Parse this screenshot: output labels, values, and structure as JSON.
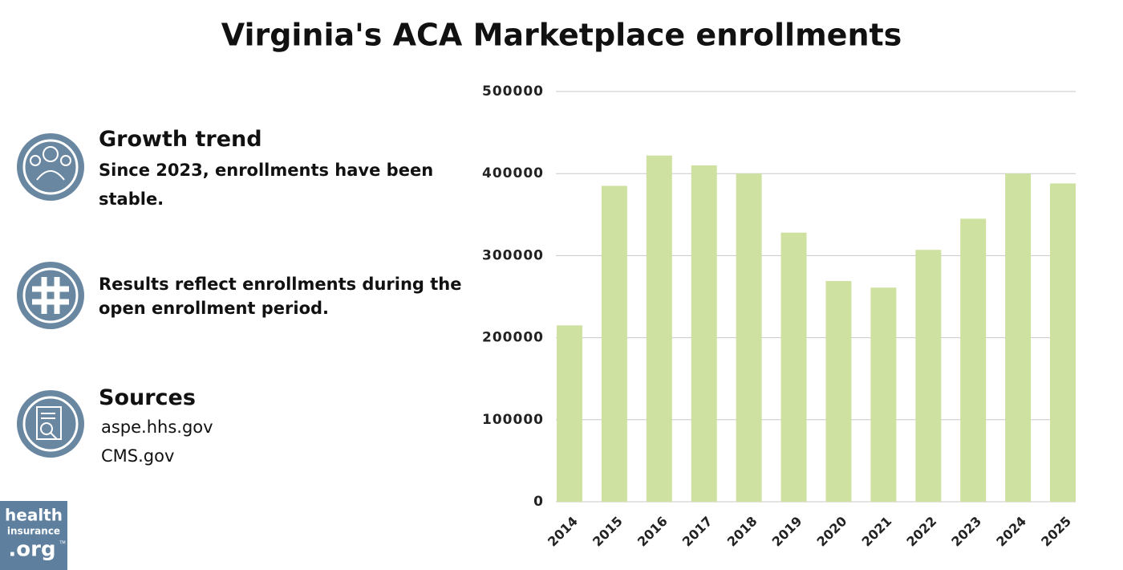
{
  "chart_data": {
    "type": "bar",
    "title": "Virginia's ACA Marketplace enrollments",
    "categories": [
      "2014",
      "2015",
      "2016",
      "2017",
      "2018",
      "2019",
      "2020",
      "2021",
      "2022",
      "2023",
      "2024",
      "2025"
    ],
    "values": [
      215000,
      385000,
      422000,
      410000,
      400000,
      328000,
      269000,
      261000,
      307000,
      345000,
      400000,
      388000
    ],
    "color": "#cfe1a0",
    "ylim": [
      0,
      500000
    ],
    "yticks": [
      0,
      100000,
      200000,
      300000,
      400000,
      500000
    ],
    "grid": true
  },
  "panel": {
    "growth": {
      "heading": "Growth trend",
      "text": "Since 2023, enrollments have been stable."
    },
    "note": {
      "text": "Results reflect enrollments during the open enrollment period."
    },
    "sources": {
      "heading": "Sources",
      "items": [
        "aspe.hhs.gov",
        "CMS.gov"
      ]
    }
  },
  "logo": {
    "lines": [
      "health",
      "insurance",
      ".org"
    ],
    "mark": "TM"
  }
}
